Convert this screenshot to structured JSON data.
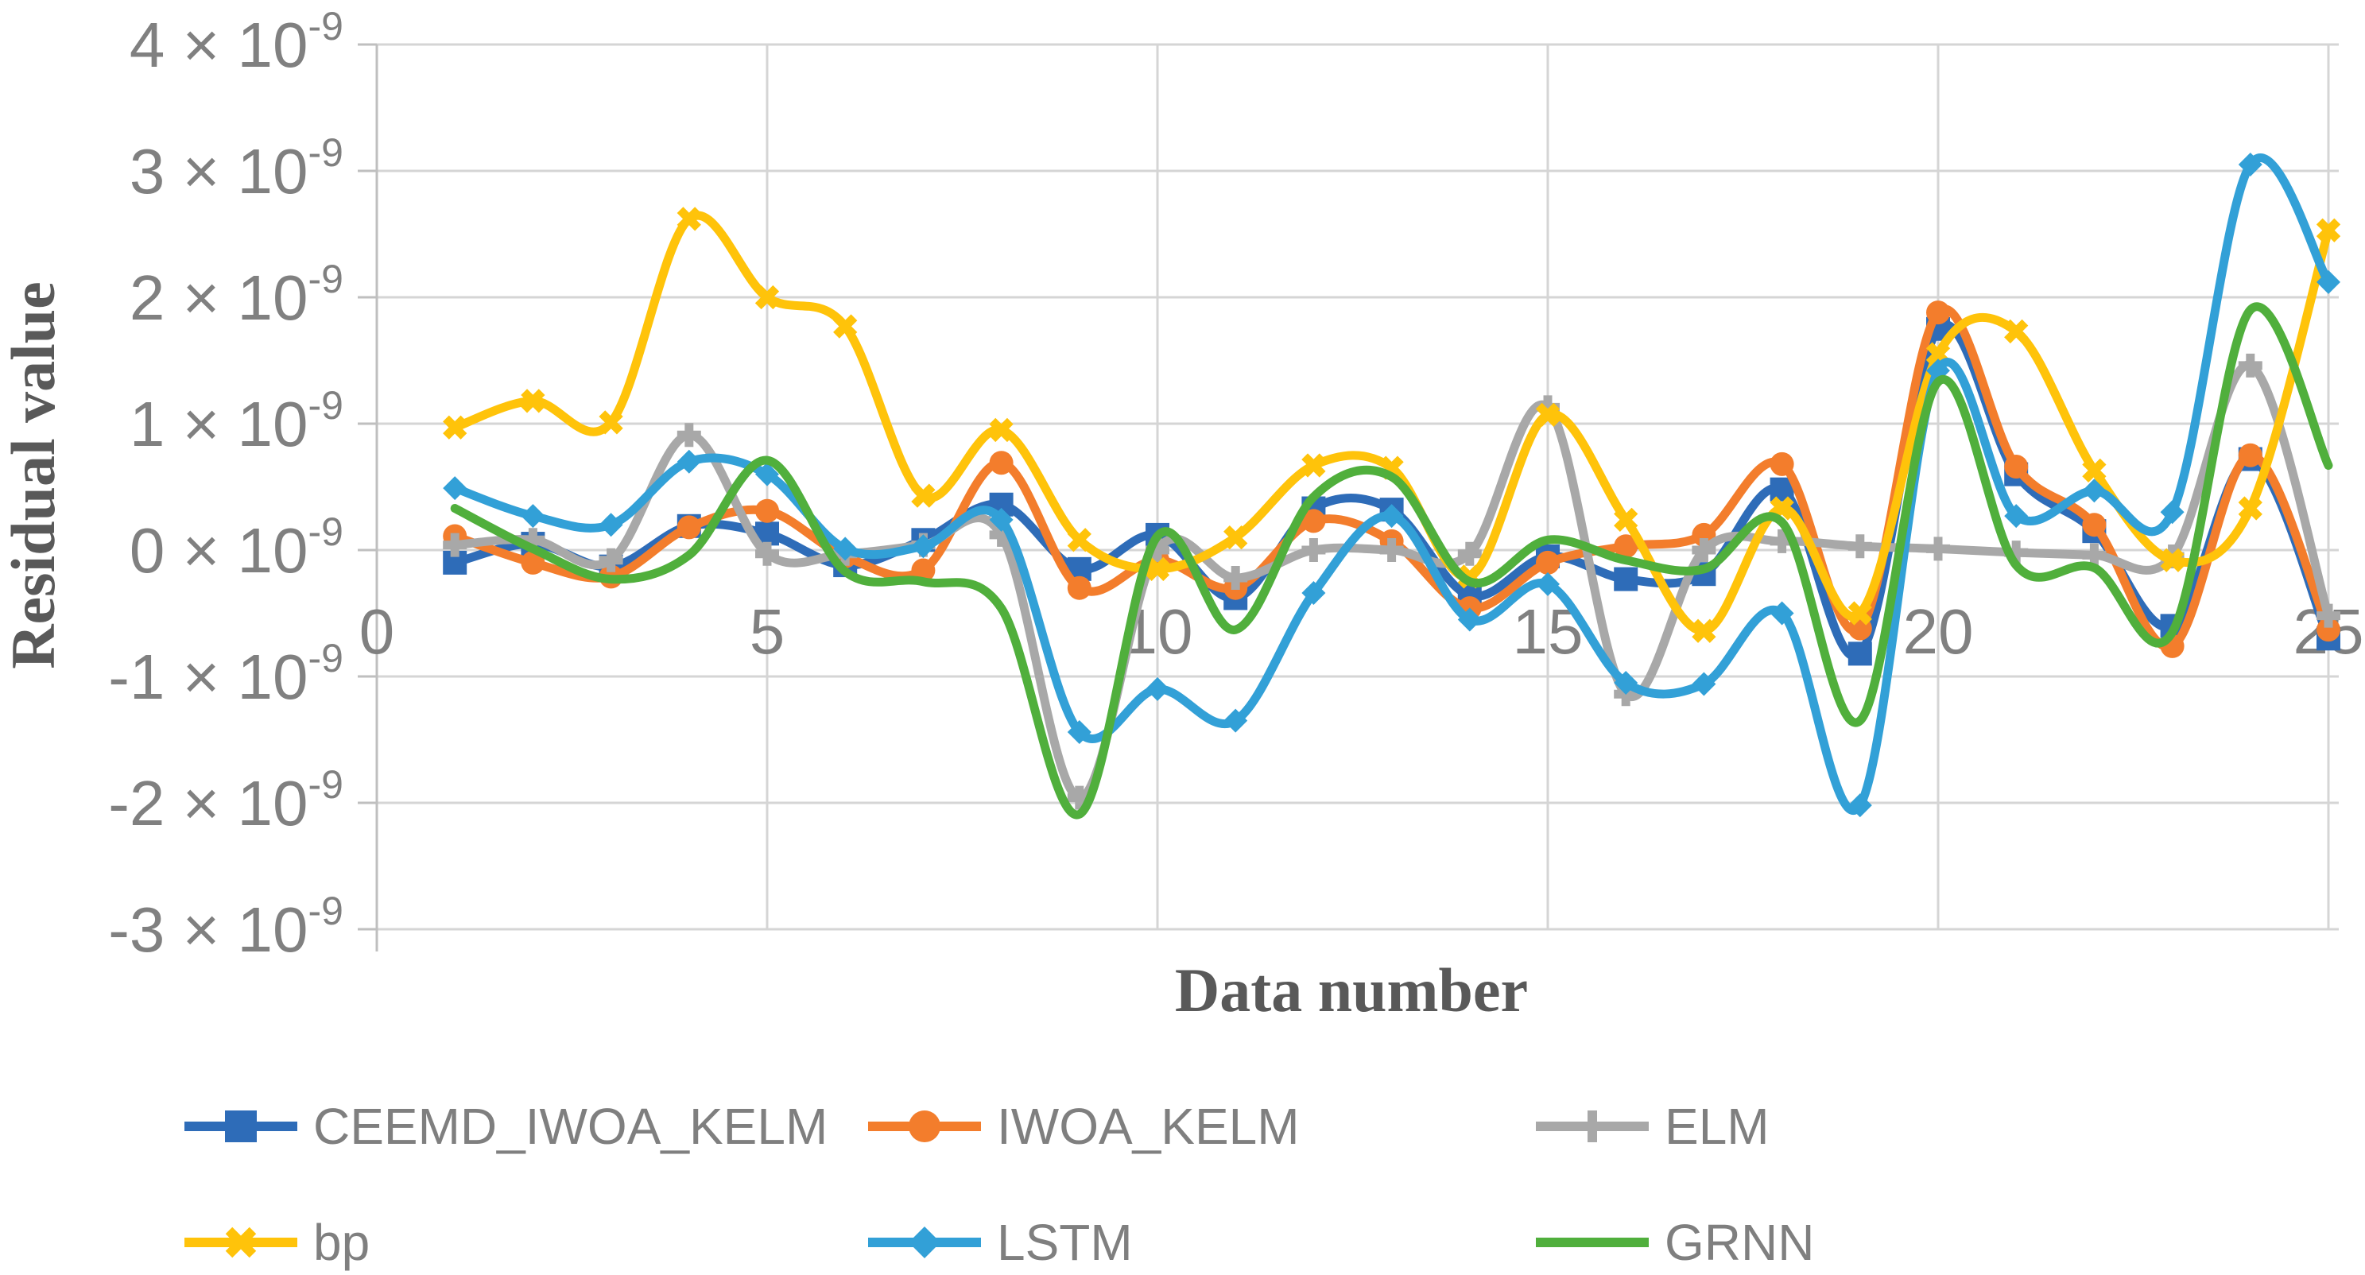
{
  "chart_data": {
    "type": "line",
    "title": "",
    "xlabel": "Data number",
    "ylabel": "Residual value",
    "x": [
      1,
      2,
      3,
      4,
      5,
      6,
      7,
      8,
      9,
      10,
      11,
      12,
      13,
      14,
      15,
      16,
      17,
      18,
      19,
      20,
      21,
      22,
      23,
      24,
      25
    ],
    "xlim": [
      0,
      25
    ],
    "xticks": [
      0,
      5,
      10,
      15,
      20,
      25
    ],
    "y_unit_note": "values are in units of 1e-9 as shown on axis tick labels",
    "y_tick_coefficients": [
      4,
      3,
      2,
      1,
      0,
      -1,
      -2,
      -3
    ],
    "y_tick_suffix": "× 10",
    "y_tick_exponent": "-9",
    "ylim_coefficients": [
      -3,
      4
    ],
    "grid": true,
    "legend_position": "bottom",
    "series": [
      {
        "name": "CEEMD_IWOA_KELM",
        "color": "#2e6cb8",
        "marker": "square",
        "values": [
          -0.1,
          0.05,
          -0.13,
          0.19,
          0.13,
          -0.12,
          0.08,
          0.36,
          -0.15,
          0.12,
          -0.38,
          0.33,
          0.32,
          -0.36,
          -0.05,
          -0.23,
          -0.19,
          0.48,
          -0.82,
          1.75,
          0.6,
          0.15,
          -0.6,
          0.72,
          -0.7
        ]
      },
      {
        "name": "IWOA_KELM",
        "color": "#f37d2c",
        "marker": "circle",
        "values": [
          0.11,
          -0.1,
          -0.21,
          0.18,
          0.31,
          -0.05,
          -0.16,
          0.69,
          -0.3,
          -0.08,
          -0.3,
          0.23,
          0.07,
          -0.46,
          -0.1,
          0.03,
          0.12,
          0.68,
          -0.62,
          1.88,
          0.66,
          0.2,
          -0.76,
          0.75,
          -0.63
        ]
      },
      {
        "name": "ELM",
        "color": "#a8a8a8",
        "marker": "plus",
        "values": [
          0.04,
          0.08,
          -0.08,
          0.91,
          -0.03,
          -0.03,
          0.04,
          0.12,
          -1.96,
          0.0,
          -0.22,
          0.0,
          0.0,
          -0.03,
          1.13,
          -1.14,
          0.0,
          0.07,
          0.03,
          0.01,
          -0.02,
          -0.04,
          -0.05,
          1.46,
          -0.52
        ]
      },
      {
        "name": "bp",
        "color": "#ffc30a",
        "marker": "x",
        "values": [
          0.97,
          1.18,
          1.01,
          2.62,
          2.0,
          1.77,
          0.43,
          0.95,
          0.08,
          -0.15,
          0.1,
          0.67,
          0.65,
          -0.21,
          1.07,
          0.24,
          -0.64,
          0.33,
          -0.5,
          1.55,
          1.73,
          0.63,
          -0.08,
          0.33,
          2.53
        ]
      },
      {
        "name": "LSTM",
        "color": "#32a0d7",
        "marker": "diamond",
        "values": [
          0.49,
          0.27,
          0.2,
          0.7,
          0.6,
          0.01,
          0.03,
          0.24,
          -1.44,
          -1.1,
          -1.35,
          -0.34,
          0.27,
          -0.55,
          -0.27,
          -1.05,
          -1.06,
          -0.5,
          -2.02,
          1.42,
          0.27,
          0.47,
          0.3,
          3.05,
          2.12
        ]
      },
      {
        "name": "GRNN",
        "color": "#50af3c",
        "marker": "none",
        "values": [
          0.33,
          0.01,
          -0.23,
          -0.04,
          0.71,
          -0.17,
          -0.25,
          -0.46,
          -2.09,
          0.11,
          -0.63,
          0.42,
          0.58,
          -0.25,
          0.08,
          -0.08,
          -0.15,
          0.22,
          -1.35,
          1.33,
          -0.12,
          -0.14,
          -0.65,
          1.9,
          0.67
        ]
      }
    ],
    "style": {
      "gridline_color": "#d5d5d5",
      "axis_color": "#bfbfbf",
      "tick_label_color": "#808080",
      "axis_title_color": "#595959",
      "legend_text_color": "#7f7f7f",
      "background": "#ffffff"
    }
  }
}
